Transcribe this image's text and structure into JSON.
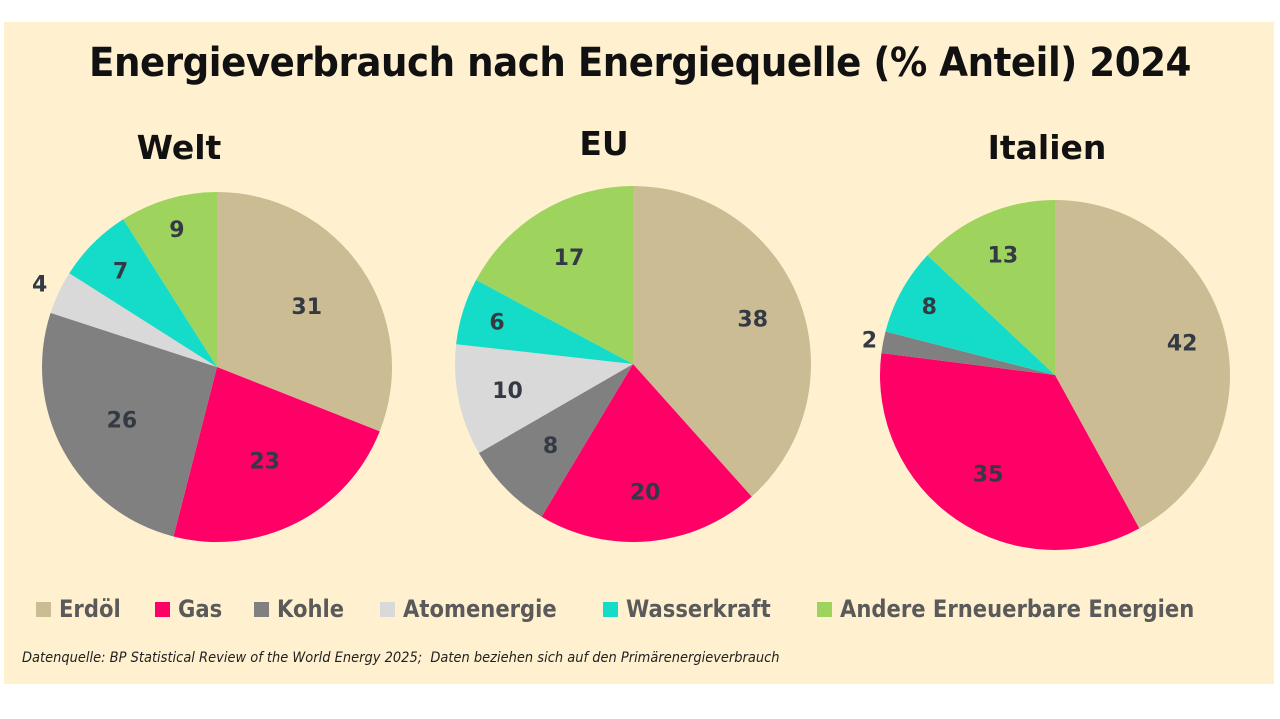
{
  "chart_data": {
    "type": "pie",
    "title": "Energieverbrauch nach Energiequelle (% Anteil) 2024",
    "categories": [
      "Erdöl",
      "Gas",
      "Kohle",
      "Atomenergie",
      "Wasserkraft",
      "Andere Erneuerbare Energien"
    ],
    "colors": [
      "#cbbc94",
      "#ff0066",
      "#808080",
      "#d9d9d9",
      "#14dcc8",
      "#9ed45e"
    ],
    "legend_position": "bottom",
    "charts": [
      {
        "title": "Welt",
        "values": [
          31,
          23,
          26,
          4,
          7,
          9
        ]
      },
      {
        "title": "EU",
        "values": [
          38,
          20,
          8,
          10,
          6,
          17
        ]
      },
      {
        "title": "Italien",
        "values": [
          42,
          35,
          2,
          0,
          8,
          13
        ]
      }
    ],
    "source_note": "Datenquelle: BP Statistical Review of the World Energy 2025;  Daten beziehen sich auf den Primärenergieverbrauch"
  }
}
